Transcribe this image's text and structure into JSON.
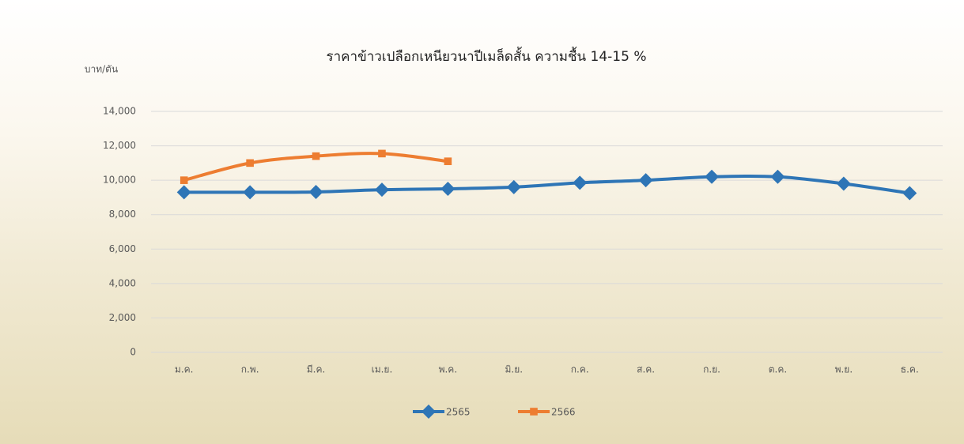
{
  "chart_data": {
    "type": "line",
    "title": "ราคาข้าวเปลือกเหนียวนาปีเมล็ดสั้น ความชื้น 14-15 %",
    "y_label": "บาท/ตัน",
    "categories": [
      "ม.ค.",
      "ก.พ.",
      "มี.ค.",
      "เม.ย.",
      "พ.ค.",
      "มิ.ย.",
      "ก.ค.",
      "ส.ค.",
      "ก.ย.",
      "ต.ค.",
      "พ.ย.",
      "ธ.ค."
    ],
    "series": [
      {
        "name": "2565",
        "color": "#2e75b6",
        "marker": "diamond",
        "values": [
          9300,
          9300,
          9320,
          9450,
          9500,
          9600,
          9850,
          10000,
          10200,
          10200,
          9800,
          9250
        ]
      },
      {
        "name": "2566",
        "color": "#ed7d31",
        "marker": "square",
        "values": [
          10000,
          11000,
          11400,
          11550,
          11100,
          null,
          null,
          null,
          null,
          null,
          null,
          null
        ]
      }
    ],
    "ylim": [
      0,
      14000
    ],
    "yticks": [
      0,
      {
        "value": 2000,
        "label": "2,000"
      },
      {
        "value": 4000,
        "label": "4,000"
      },
      {
        "value": 6000,
        "label": "6,000"
      },
      {
        "value": 8000,
        "label": "8,000"
      },
      {
        "value": 10000,
        "label": "10,000"
      },
      {
        "value": 12000,
        "label": "12,000"
      },
      {
        "value": 14000,
        "label": "14,000"
      }
    ],
    "grid": true,
    "legend": "bottom"
  }
}
